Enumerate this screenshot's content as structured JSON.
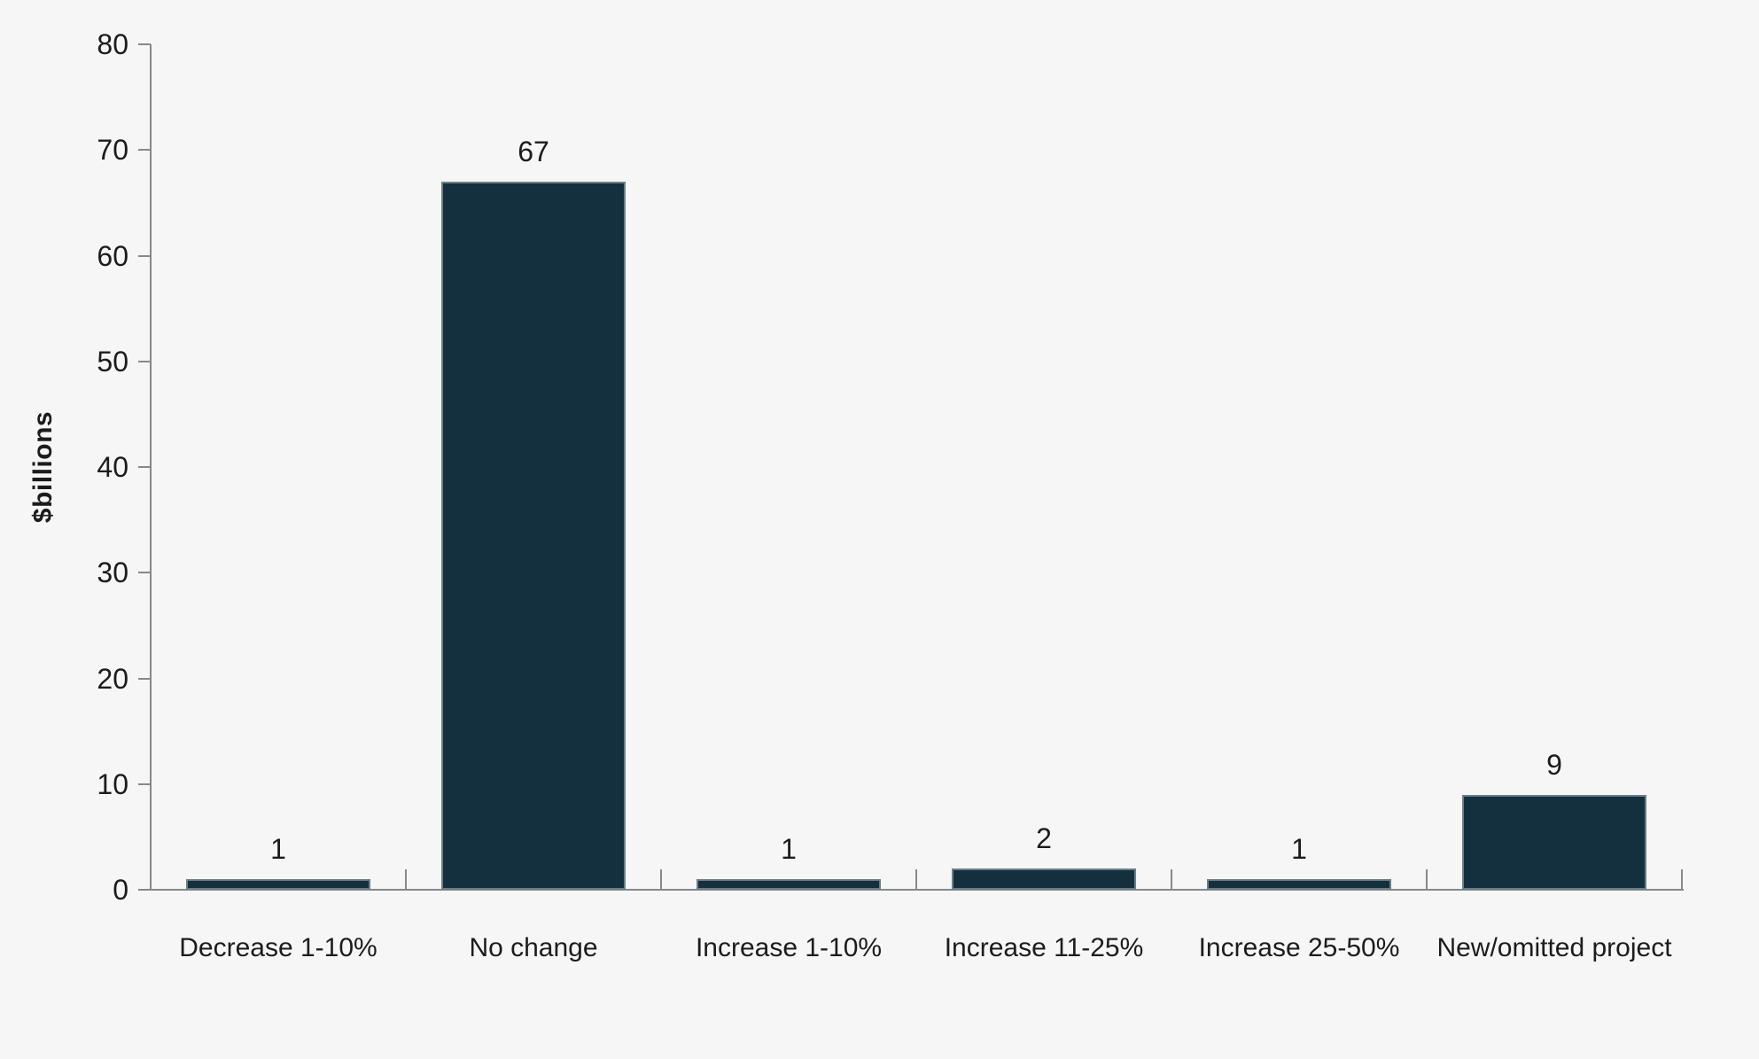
{
  "chart_data": {
    "type": "bar",
    "title": "",
    "xlabel": "",
    "ylabel": "$billions",
    "categories": [
      "Decrease 1-10%",
      "No change",
      "Increase 1-10%",
      "Increase 11-25%",
      "Increase 25-50%",
      "New/omitted project"
    ],
    "values": [
      1,
      67,
      1,
      2,
      1,
      9
    ],
    "value_labels": [
      "1",
      "67",
      "1",
      "2",
      "1",
      "9"
    ],
    "ylim": [
      0,
      80
    ],
    "ytick_interval": 10,
    "yticks": [
      0,
      10,
      20,
      30,
      40,
      50,
      60,
      70,
      80
    ],
    "grid": false,
    "legend": null,
    "colors": {
      "background": "#f5f6f5",
      "bar_fill": "#14303e",
      "axis": "#85898c",
      "text": "#1c1c1c"
    }
  }
}
